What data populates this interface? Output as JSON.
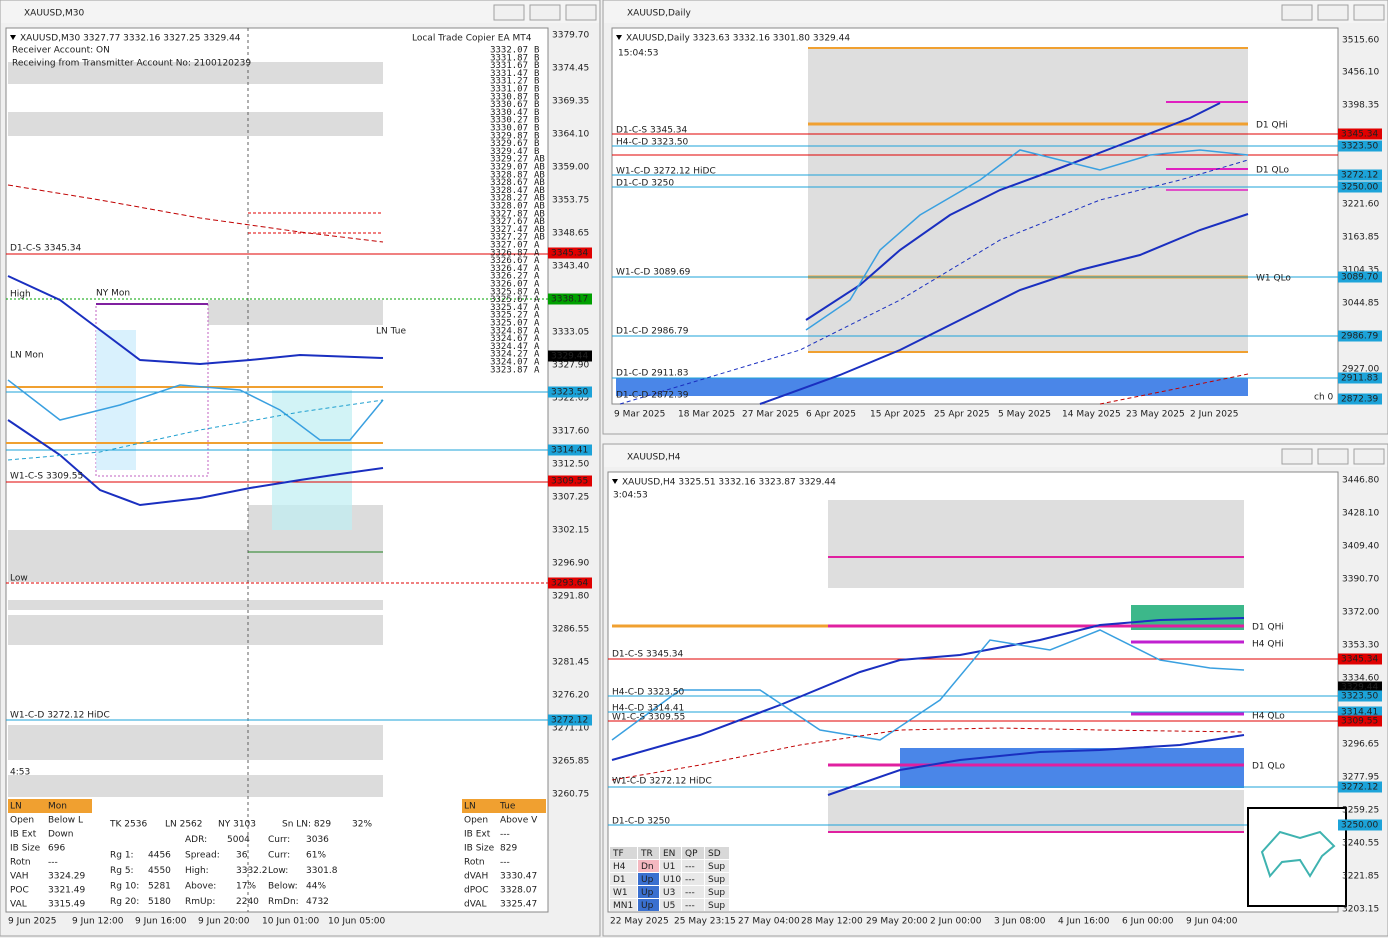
{
  "windows": [
    {
      "title": "XAUUSD,M30",
      "header": "XAUUSD,M30  3327.77 3332.16 3327.25 3329.44",
      "notes": [
        "Receiver Account: ON",
        "Receiving from Transmitter Account No: 2100120239"
      ],
      "copier": "Local Trade Copier EA MT4",
      "timer": "4:53",
      "price_ticks": [
        "3379.70",
        "3374.45",
        "3369.35",
        "3364.10",
        "3359.00",
        "3353.75",
        "3348.65",
        "3343.40",
        "3333.05",
        "3327.90",
        "3322.65",
        "3317.60",
        "3312.50",
        "3307.25",
        "3302.15",
        "3296.90",
        "3291.80",
        "3286.55",
        "3281.45",
        "3276.20",
        "3271.10",
        "3265.85",
        "3260.75"
      ],
      "price_tags": [
        {
          "label": "3345.34",
          "color": "#e00000"
        },
        {
          "label": "3338.17",
          "color": "#00a000"
        },
        {
          "label": "3329.44",
          "color": "#000000"
        },
        {
          "label": "3323.50",
          "color": "#1ca3d9"
        },
        {
          "label": "3314.41",
          "color": "#1ca3d9"
        },
        {
          "label": "3309.55",
          "color": "#e00000"
        },
        {
          "label": "3293.64",
          "color": "#e00000"
        },
        {
          "label": "3272.12",
          "color": "#1ca3d9"
        }
      ],
      "time_ticks": [
        "9 Jun 2025",
        "9 Jun 12:00",
        "9 Jun 16:00",
        "9 Jun 20:00",
        "10 Jun 01:00",
        "10 Jun 05:00"
      ],
      "level_labels": [
        {
          "text": "D1-C-S 3345.34",
          "color": "#202020"
        },
        {
          "text": "High",
          "color": "#202020"
        },
        {
          "text": "NY Mon",
          "color": "#8020a0"
        },
        {
          "text": "LN Tue",
          "color": "#e08000"
        },
        {
          "text": "LN Mon",
          "color": "#e08000"
        },
        {
          "text": "W1-C-S 3309.55",
          "color": "#202020"
        },
        {
          "text": "Low",
          "color": "#202020"
        },
        {
          "text": "W1-C-D 3272.12 HiDC",
          "color": "#202020"
        }
      ],
      "ladder": [
        [
          "3332.07",
          "B"
        ],
        [
          "3331.87",
          "B"
        ],
        [
          "3331.67",
          "B"
        ],
        [
          "3331.47",
          "B"
        ],
        [
          "3331.27",
          "B"
        ],
        [
          "3331.07",
          "B"
        ],
        [
          "3330.87",
          "B"
        ],
        [
          "3330.67",
          "B"
        ],
        [
          "3330.47",
          "B"
        ],
        [
          "3330.27",
          "B"
        ],
        [
          "3330.07",
          "B"
        ],
        [
          "3329.87",
          "B"
        ],
        [
          "3329.67",
          "B"
        ],
        [
          "3329.47",
          "B"
        ],
        [
          "3329.27",
          "AB"
        ],
        [
          "3329.07",
          "AB"
        ],
        [
          "3328.87",
          "AB"
        ],
        [
          "3328.67",
          "AB"
        ],
        [
          "3328.47",
          "AB"
        ],
        [
          "3328.27",
          "AB"
        ],
        [
          "3328.07",
          "AB"
        ],
        [
          "3327.87",
          "AB"
        ],
        [
          "3327.67",
          "AB"
        ],
        [
          "3327.47",
          "AB"
        ],
        [
          "3327.27",
          "AB"
        ],
        [
          "3327.07",
          "A"
        ],
        [
          "3326.87",
          "A"
        ],
        [
          "3326.67",
          "A"
        ],
        [
          "3326.47",
          "A"
        ],
        [
          "3326.27",
          "A"
        ],
        [
          "3326.07",
          "A"
        ],
        [
          "3325.87",
          "A"
        ],
        [
          "3325.67",
          "A"
        ],
        [
          "3325.47",
          "A"
        ],
        [
          "3325.27",
          "A"
        ],
        [
          "3325.07",
          "A"
        ],
        [
          "3324.87",
          "A"
        ],
        [
          "3324.67",
          "A"
        ],
        [
          "3324.47",
          "A"
        ],
        [
          "3324.27",
          "A"
        ],
        [
          "3324.07",
          "A"
        ],
        [
          "3323.87",
          "A"
        ]
      ],
      "session_left": [
        [
          "LN",
          "Mon"
        ],
        [
          "Open",
          "Below L"
        ],
        [
          "IB Ext",
          "Down"
        ],
        [
          "IB Size",
          "696"
        ],
        [
          "Rotn",
          "---"
        ],
        [
          "VAH",
          "3324.29"
        ],
        [
          "POC",
          "3321.49"
        ],
        [
          "VAL",
          "3315.49"
        ]
      ],
      "session_right": [
        [
          "LN",
          "Tue"
        ],
        [
          "Open",
          "Above V"
        ],
        [
          "IB Ext",
          "---"
        ],
        [
          "IB Size",
          "829"
        ],
        [
          "Rotn",
          "---"
        ],
        [
          "dVAH",
          "3330.47"
        ],
        [
          "dPOC",
          "3328.07"
        ],
        [
          "dVAL",
          "3325.47"
        ]
      ],
      "stats": [
        [
          "TK 2536",
          "LN 2562",
          "NY 3103",
          "Sn LN: 829",
          "32%"
        ],
        [
          "ADR:",
          "5004",
          "Curr:",
          "3036"
        ],
        [
          "Rg 1:",
          "4456",
          "Spread:",
          "36",
          "Curr:",
          "61%"
        ],
        [
          "Rg 5:",
          "4550",
          "High:",
          "3332.2",
          "Low:",
          "3301.8"
        ],
        [
          "Rg 10:",
          "5281",
          "Above:",
          "17%",
          "Below:",
          "44%"
        ],
        [
          "Rg 20:",
          "5180",
          "RmUp:",
          "2240",
          "RmDn:",
          "4732"
        ]
      ]
    },
    {
      "title": "XAUUSD,Daily",
      "header": "XAUUSD,Daily  3323.63 3332.16 3301.80 3329.44",
      "timer": "15:04:53",
      "price_ticks": [
        "3515.60",
        "3456.10",
        "3398.35",
        "3221.60",
        "3163.85",
        "3104.35",
        "3044.85",
        "2927.00"
      ],
      "price_tags": [
        {
          "label": "3345.34",
          "color": "#e00000"
        },
        {
          "label": "3323.50",
          "color": "#1ca3d9"
        },
        {
          "label": "3272.12",
          "color": "#1ca3d9"
        },
        {
          "label": "3250.00",
          "color": "#1ca3d9"
        },
        {
          "label": "3089.70",
          "color": "#1ca3d9"
        },
        {
          "label": "2986.79",
          "color": "#1ca3d9"
        },
        {
          "label": "2911.83",
          "color": "#1ca3d9"
        },
        {
          "label": "2872.39",
          "color": "#1ca3d9"
        }
      ],
      "time_ticks": [
        "9 Mar 2025",
        "18 Mar 2025",
        "27 Mar 2025",
        "6 Apr 2025",
        "15 Apr 2025",
        "25 Apr 2025",
        "5 May 2025",
        "14 May 2025",
        "23 May 2025",
        "2 Jun 2025"
      ],
      "level_labels": [
        {
          "text": "D1-C-S 3345.34",
          "color": "#202020"
        },
        {
          "text": "H4-C-D 3323.50",
          "color": "#202020"
        },
        {
          "text": "W1-C-D 3272.12 HiDC",
          "color": "#202020"
        },
        {
          "text": "D1-C-D 3250",
          "color": "#202020"
        },
        {
          "text": "W1-C-D 3089.69",
          "color": "#202020"
        },
        {
          "text": "D1-C-D 2986.79",
          "color": "#202020"
        },
        {
          "text": "D1-C-D 2911.83",
          "color": "#202020"
        },
        {
          "text": "D1-C-D 2872.39",
          "color": "#202020"
        },
        {
          "text": "D1 QHi",
          "color": "#e03070"
        },
        {
          "text": "D1 QLo",
          "color": "#d020c0"
        },
        {
          "text": "W1 QLo",
          "color": "#e0a000"
        },
        {
          "text": "ch 0",
          "color": "#808080"
        }
      ]
    },
    {
      "title": "XAUUSD,H4",
      "header": "XAUUSD,H4  3325.51 3332.16 3323.87 3329.44",
      "timer": "3:04:53",
      "price_ticks": [
        "3446.80",
        "3428.10",
        "3409.40",
        "3390.70",
        "3372.00",
        "3353.30",
        "3334.60",
        "3296.65",
        "3277.95",
        "3259.25",
        "3240.55",
        "3221.85",
        "3203.15"
      ],
      "price_tags": [
        {
          "label": "3345.34",
          "color": "#e00000"
        },
        {
          "label": "3329.44",
          "color": "#000000"
        },
        {
          "label": "3323.50",
          "color": "#1ca3d9"
        },
        {
          "label": "3314.41",
          "color": "#1ca3d9"
        },
        {
          "label": "3309.55",
          "color": "#e00000"
        },
        {
          "label": "3272.12",
          "color": "#1ca3d9"
        },
        {
          "label": "3250.00",
          "color": "#1ca3d9"
        }
      ],
      "time_ticks": [
        "22 May 2025",
        "25 May 23:15",
        "27 May 04:00",
        "28 May 12:00",
        "29 May 20:00",
        "2 Jun 00:00",
        "3 Jun 08:00",
        "4 Jun 16:00",
        "6 Jun 00:00",
        "9 Jun 04:00"
      ],
      "level_labels": [
        {
          "text": "D1-C-S 3345.34",
          "color": "#202020"
        },
        {
          "text": "H4-C-D 3323.50",
          "color": "#202020"
        },
        {
          "text": "H4-C-D 3314.41",
          "color": "#202020"
        },
        {
          "text": "W1-C-S 3309.55",
          "color": "#202020"
        },
        {
          "text": "W1-C-D 3272.12 HiDC",
          "color": "#202020"
        },
        {
          "text": "D1-C-D 3250",
          "color": "#202020"
        },
        {
          "text": "D1 QHi",
          "color": "#e03070"
        },
        {
          "text": "H4 QHi",
          "color": "#c020d0"
        },
        {
          "text": "H4 QLo",
          "color": "#c020d0"
        },
        {
          "text": "D1 QLo",
          "color": "#e020a0"
        }
      ],
      "trend_table": [
        [
          "TF",
          "TR",
          "EN",
          "QP",
          "SD"
        ],
        [
          "H4",
          "Dn",
          "U1",
          "---",
          "Sup"
        ],
        [
          "D1",
          "Up",
          "U10",
          "---",
          "Sup"
        ],
        [
          "W1",
          "Up",
          "U3",
          "---",
          "Sup"
        ],
        [
          "MN1",
          "Up",
          "U5",
          "---",
          "Sup"
        ]
      ]
    }
  ]
}
